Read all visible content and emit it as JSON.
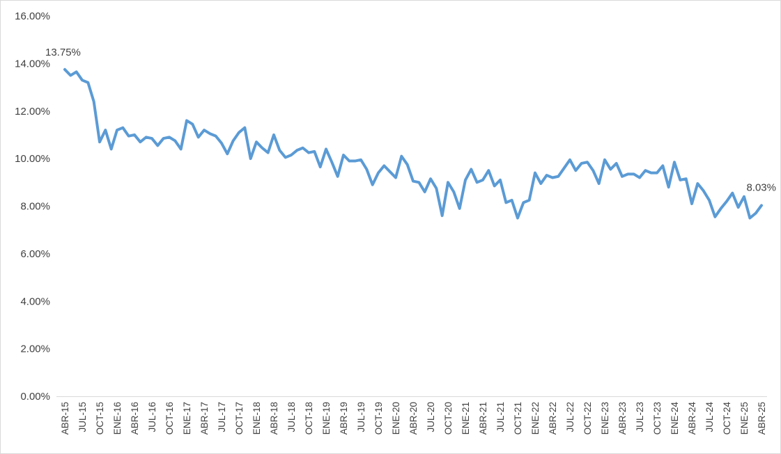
{
  "chart_data": {
    "type": "line",
    "title": "",
    "xlabel": "",
    "ylabel": "",
    "ylim": [
      0,
      16
    ],
    "y_tick_labels": [
      "0.00%",
      "2.00%",
      "4.00%",
      "6.00%",
      "8.00%",
      "10.00%",
      "12.00%",
      "14.00%",
      "16.00%"
    ],
    "x_tick_labels": [
      "ABR-15",
      "JUL-15",
      "OCT-15",
      "ENE-16",
      "ABR-16",
      "JUL-16",
      "OCT-16",
      "ENE-17",
      "ABR-17",
      "JUL-17",
      "OCT-17",
      "ENE-18",
      "ABR-18",
      "JUL-18",
      "OCT-18",
      "ENE-19",
      "ABR-19",
      "JUL-19",
      "OCT-19",
      "ENE-20",
      "ABR-20",
      "JUL-20",
      "OCT-20",
      "ENE-21",
      "ABR-21",
      "JUL-21",
      "OCT-21",
      "ENE-22",
      "ABR-22",
      "JUL-22",
      "OCT-22",
      "ENE-23",
      "ABR-23",
      "JUL-23",
      "OCT-23",
      "ENE-24",
      "ABR-24",
      "JUL-24",
      "OCT-24",
      "ENE-25",
      "ABR-25"
    ],
    "grid": false,
    "legend": "none",
    "line_color": "#5b9bd5",
    "series": [
      {
        "values": [
          13.75,
          13.5,
          13.65,
          13.3,
          13.2,
          12.4,
          10.7,
          11.2,
          10.4,
          11.2,
          11.3,
          10.95,
          11.0,
          10.7,
          10.9,
          10.85,
          10.55,
          10.85,
          10.9,
          10.75,
          10.4,
          11.6,
          11.45,
          10.9,
          11.2,
          11.05,
          10.95,
          10.65,
          10.2,
          10.75,
          11.1,
          11.3,
          10.0,
          10.7,
          10.45,
          10.25,
          11.0,
          10.35,
          10.05,
          10.15,
          10.35,
          10.45,
          10.25,
          10.3,
          9.65,
          10.4,
          9.85,
          9.25,
          10.15,
          9.9,
          9.9,
          9.95,
          9.55,
          8.9,
          9.4,
          9.7,
          9.45,
          9.2,
          10.1,
          9.75,
          9.05,
          9.0,
          8.6,
          9.15,
          8.75,
          7.6,
          9.0,
          8.6,
          7.9,
          9.1,
          9.55,
          9.0,
          9.1,
          9.5,
          8.85,
          9.1,
          8.15,
          8.25,
          7.5,
          8.15,
          8.25,
          9.4,
          8.95,
          9.3,
          9.2,
          9.25,
          9.6,
          9.95,
          9.5,
          9.8,
          9.85,
          9.5,
          8.95,
          9.95,
          9.55,
          9.8,
          9.25,
          9.35,
          9.35,
          9.2,
          9.5,
          9.4,
          9.4,
          9.7,
          8.8,
          9.85,
          9.1,
          9.15,
          8.1,
          8.95,
          8.65,
          8.25,
          7.55,
          7.9,
          8.2,
          8.55,
          7.95,
          8.4,
          7.5,
          7.7,
          8.03
        ]
      }
    ],
    "annotations": [
      {
        "text": "13.75%",
        "point": "first"
      },
      {
        "text": "8.03%",
        "point": "last"
      }
    ]
  }
}
